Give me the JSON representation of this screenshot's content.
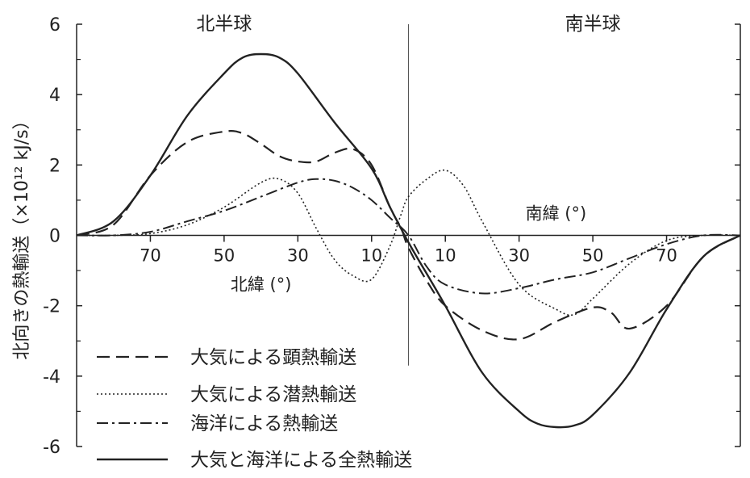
{
  "chart_data": {
    "type": "line",
    "ylabel": "北向きの熱輸送（×10¹² kJ/s）",
    "ylim": [
      -6,
      6
    ],
    "yticks": [
      6,
      4,
      2,
      0,
      -2,
      -4,
      -6
    ],
    "ytick_labels": [
      "6",
      "4",
      "2",
      "0",
      "-2",
      "-4",
      "-6"
    ],
    "x_range": [
      90,
      -90
    ],
    "xticks": [
      70,
      50,
      30,
      10,
      -10,
      -30,
      -50,
      -70
    ],
    "xtick_labels": [
      "70",
      "50",
      "30",
      "10",
      "10",
      "30",
      "50",
      "70"
    ],
    "hemisphere_labels": {
      "north": "北半球",
      "south": "南半球"
    },
    "axis_labels": {
      "north_lat": "北緯 (°)",
      "south_lat": "南緯 (°)"
    },
    "divider_at": 0,
    "legend_position": "bottom-left",
    "x_units_note": "x = latitude in degrees; positive = north, negative = south",
    "series": [
      {
        "name": "大気による顕熱輸送",
        "dash": "dashed",
        "x": [
          90,
          80,
          70,
          60,
          50,
          45,
          40,
          35,
          30,
          25,
          20,
          15,
          10,
          5,
          2,
          0,
          -5,
          -10,
          -20,
          -30,
          -40,
          -50,
          -55,
          -60,
          -70,
          -80,
          -90
        ],
        "y": [
          0.0,
          0.3,
          1.7,
          2.65,
          2.95,
          2.9,
          2.6,
          2.25,
          2.1,
          2.1,
          2.35,
          2.45,
          2.0,
          0.8,
          0.2,
          -0.35,
          -1.3,
          -2.0,
          -2.7,
          -2.95,
          -2.45,
          -2.05,
          -2.2,
          -2.65,
          -2.0,
          -0.6,
          0.0
        ]
      },
      {
        "name": "大気による潜熱輸送",
        "dash": "dotted",
        "x": [
          90,
          80,
          70,
          60,
          50,
          40,
          35,
          30,
          25,
          20,
          15,
          10,
          5,
          2,
          0,
          -5,
          -10,
          -15,
          -20,
          -30,
          -40,
          -45,
          -50,
          -60,
          -70,
          -80,
          -90
        ],
        "y": [
          0.0,
          0.0,
          0.05,
          0.3,
          0.8,
          1.5,
          1.6,
          1.2,
          0.2,
          -0.7,
          -1.15,
          -1.25,
          -0.3,
          0.6,
          1.1,
          1.6,
          1.85,
          1.4,
          0.4,
          -1.4,
          -2.1,
          -2.25,
          -1.8,
          -0.8,
          -0.15,
          0.0,
          0.0
        ]
      },
      {
        "name": "海洋による熱輸送",
        "dash": "dashdot",
        "x": [
          90,
          80,
          70,
          60,
          50,
          40,
          30,
          25,
          20,
          15,
          10,
          5,
          0,
          -5,
          -10,
          -20,
          -30,
          -40,
          -50,
          -60,
          -70,
          -80,
          -90
        ],
        "y": [
          0.0,
          0.0,
          0.1,
          0.4,
          0.7,
          1.1,
          1.5,
          1.6,
          1.55,
          1.35,
          1.0,
          0.5,
          0.0,
          -0.9,
          -1.4,
          -1.65,
          -1.5,
          -1.25,
          -1.05,
          -0.65,
          -0.25,
          0.0,
          0.0
        ]
      },
      {
        "name": "大気と海洋による全熱輸送",
        "dash": "solid",
        "x": [
          90,
          80,
          70,
          60,
          50,
          45,
          40,
          35,
          30,
          20,
          10,
          5,
          0,
          -5,
          -10,
          -20,
          -30,
          -35,
          -40,
          -45,
          -50,
          -60,
          -70,
          -80,
          -90
        ],
        "y": [
          0.0,
          0.4,
          1.7,
          3.4,
          4.6,
          5.05,
          5.15,
          5.05,
          4.6,
          3.2,
          1.9,
          0.8,
          -0.2,
          -1.1,
          -2.0,
          -3.9,
          -5.0,
          -5.35,
          -5.45,
          -5.4,
          -5.1,
          -3.9,
          -2.1,
          -0.6,
          0.0
        ]
      }
    ]
  }
}
